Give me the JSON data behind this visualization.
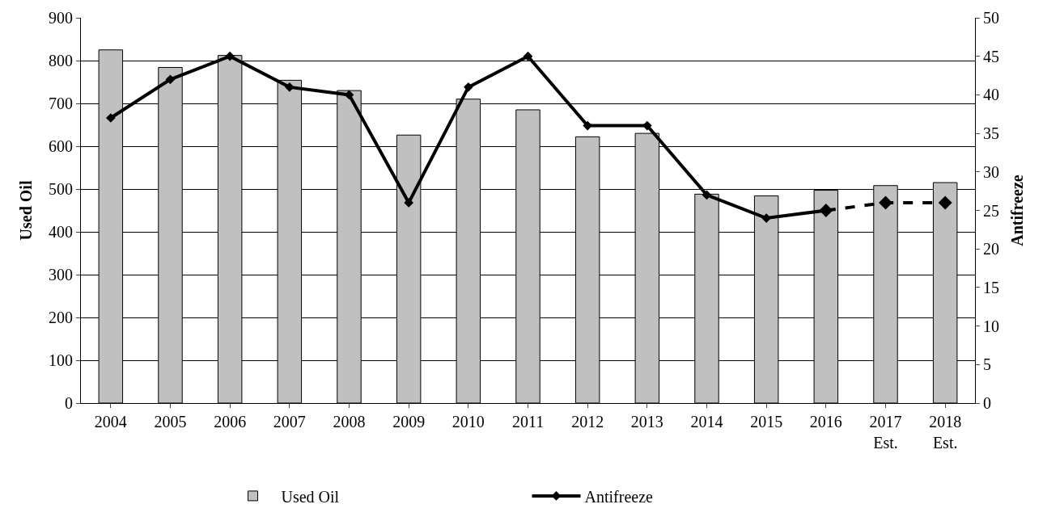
{
  "chart_data": {
    "type": "bar",
    "categories": [
      "2004",
      "2005",
      "2006",
      "2007",
      "2008",
      "2009",
      "2010",
      "2011",
      "2012",
      "2013",
      "2014",
      "2015",
      "2016",
      "2017\nEst.",
      "2018\nEst."
    ],
    "series": [
      {
        "name": "Used Oil",
        "color": "#c0c0c0",
        "values": [
          825,
          784,
          812,
          754,
          730,
          626,
          710,
          685,
          622,
          630,
          488,
          484,
          497,
          508,
          515
        ]
      },
      {
        "name": "Antifreeze",
        "type": "line",
        "axis": "y2",
        "color": "#000000",
        "marker": "diamond",
        "line_style": "solid",
        "values": [
          37,
          42,
          45,
          41,
          40,
          26,
          41,
          45,
          36,
          36,
          27,
          24,
          25,
          null,
          null
        ]
      },
      {
        "type": "line",
        "axis": "y2",
        "color": "#000000",
        "marker": "diamond",
        "line_style": "dashed",
        "values": [
          null,
          null,
          null,
          null,
          null,
          null,
          null,
          null,
          null,
          null,
          null,
          null,
          25,
          26,
          26
        ]
      }
    ],
    "ylabel": "Used Oil",
    "y2label": "Antifreeze",
    "ylim": [
      0,
      900
    ],
    "yticks": [
      0,
      100,
      200,
      300,
      400,
      500,
      600,
      700,
      800,
      900
    ],
    "y2lim": [
      0,
      50
    ],
    "y2ticks": [
      0,
      5,
      10,
      15,
      20,
      25,
      30,
      35,
      40,
      45,
      50
    ],
    "grid": "y",
    "legend": "bottom"
  }
}
